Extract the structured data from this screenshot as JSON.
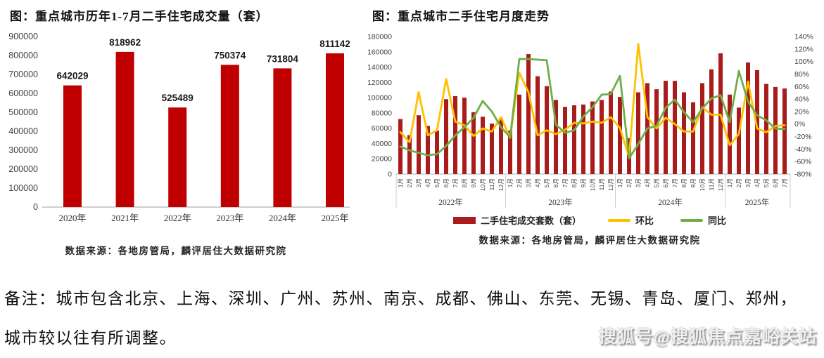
{
  "page": {
    "background": "#ffffff"
  },
  "chart_data": [
    {
      "type": "bar",
      "title": "图：重点城市历年1-7月二手住宅成交量（套）",
      "categories": [
        "2020年",
        "2021年",
        "2022年",
        "2023年",
        "2024年",
        "2025年"
      ],
      "values": [
        642029,
        818962,
        525489,
        750374,
        731804,
        811142
      ],
      "data_labels": [
        "642029",
        "818962",
        "525489",
        "750374",
        "731804",
        "811142"
      ],
      "bar_color": "#c00000",
      "ylim": [
        0,
        900000
      ],
      "ytick_step": 100000,
      "yticks": [
        0,
        100000,
        200000,
        300000,
        400000,
        500000,
        600000,
        700000,
        800000,
        900000
      ],
      "grid": false,
      "source": "数据来源：各地房管局，麟评居住大数据研究院"
    },
    {
      "type": "bar+line",
      "title": "图：重点城市二手住宅月度走势",
      "year_groups": [
        {
          "label": "2022年",
          "month_labels": [
            "1月",
            "2月",
            "3月",
            "4月",
            "5月",
            "6月",
            "7月",
            "8月",
            "9月",
            "10月",
            "11月",
            "12月"
          ]
        },
        {
          "label": "2023年",
          "month_labels": [
            "1月",
            "2月",
            "3月",
            "4月",
            "5月",
            "6月",
            "7月",
            "8月",
            "9月",
            "10月",
            "11月",
            "12月"
          ]
        },
        {
          "label": "2024年",
          "month_labels": [
            "1月",
            "2月",
            "3月",
            "4月",
            "5月",
            "6月",
            "7月",
            "8月",
            "9月",
            "10月",
            "11月",
            "12月"
          ]
        },
        {
          "label": "2025年",
          "month_labels": [
            "1月",
            "2月",
            "3月",
            "4月",
            "5月",
            "6月",
            "7月"
          ]
        }
      ],
      "series": [
        {
          "name": "二手住宅成交套数（套）",
          "type": "bar",
          "axis": "left",
          "color": "#a81c1c",
          "values": [
            72000,
            51000,
            77000,
            63000,
            57000,
            98000,
            102000,
            100000,
            81000,
            75000,
            66000,
            73000,
            57000,
            104000,
            157000,
            128000,
            115000,
            97000,
            88000,
            90000,
            91000,
            95000,
            97000,
            108000,
            101000,
            47000,
            107000,
            119000,
            111000,
            122000,
            122000,
            107000,
            94000,
            119000,
            137000,
            158000,
            104000,
            87000,
            146000,
            136000,
            118000,
            114000,
            112000
          ]
        },
        {
          "name": "环比",
          "type": "line",
          "axis": "right",
          "color": "#ffc000",
          "values": [
            -13,
            -29,
            51,
            -18,
            -10,
            72,
            4,
            -2,
            -19,
            -7,
            -12,
            11,
            -22,
            82,
            51,
            -18,
            -10,
            -16,
            -9,
            2,
            1,
            4,
            2,
            11,
            -6,
            -53,
            128,
            11,
            -7,
            10,
            0,
            -12,
            -12,
            27,
            15,
            15,
            -34,
            -16,
            68,
            -7,
            -13,
            -3,
            -2
          ]
        },
        {
          "name": "同比",
          "type": "line",
          "axis": "right",
          "color": "#70ad47",
          "values": [
            -36,
            -42,
            -46,
            -50,
            -48,
            -35,
            -18,
            -5,
            10,
            37,
            20,
            -5,
            -21,
            104,
            104,
            103,
            102,
            -1,
            -14,
            -10,
            12,
            27,
            47,
            48,
            77,
            -55,
            -32,
            -7,
            -3,
            26,
            39,
            19,
            3,
            25,
            41,
            46,
            3,
            85,
            36,
            14,
            6,
            -7,
            -8
          ]
        }
      ],
      "left_ylim": [
        0,
        180000
      ],
      "left_ytick_step": 20000,
      "left_yticks": [
        0,
        20000,
        40000,
        60000,
        80000,
        100000,
        120000,
        140000,
        160000,
        180000
      ],
      "right_ylim": [
        -80,
        140
      ],
      "right_ytick_step": 20,
      "right_yticks": [
        "140%",
        "120%",
        "100%",
        "80%",
        "60%",
        "40%",
        "20%",
        "0%",
        "-20%",
        "-40%",
        "-60%",
        "-80%"
      ],
      "grid": false,
      "legend_position": "bottom",
      "source": "数据来源：各地房管局，麟评居住大数据研究院"
    }
  ],
  "note": {
    "line1": "备注：城市包含北京、上海、深圳、广州、苏州、南京、成都、佛山、东莞、无锡、青岛、厦门、郑州，",
    "line2": "城市较以往有所调整。"
  },
  "watermark": {
    "text": "搜狐号@搜狐焦点嘉峪关站"
  }
}
